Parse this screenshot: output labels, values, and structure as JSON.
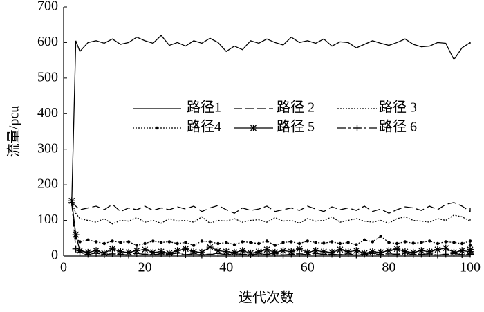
{
  "chart_data": {
    "type": "line",
    "xlabel": "迭代次数",
    "ylabel": "流量/pcu",
    "x": [
      2,
      3,
      4,
      6,
      8,
      10,
      12,
      14,
      16,
      18,
      20,
      22,
      24,
      26,
      28,
      30,
      32,
      34,
      36,
      38,
      40,
      42,
      44,
      46,
      48,
      50,
      52,
      54,
      56,
      58,
      60,
      62,
      64,
      66,
      68,
      70,
      72,
      74,
      76,
      78,
      80,
      82,
      84,
      86,
      88,
      90,
      92,
      94,
      96,
      98,
      100,
      100
    ],
    "xlim": [
      0,
      100
    ],
    "xticks": [
      0,
      20,
      40,
      60,
      80,
      100
    ],
    "ylim": [
      0,
      700
    ],
    "yticks": [
      0,
      100,
      200,
      300,
      400,
      500,
      600,
      700
    ],
    "series": [
      {
        "name": "路径1",
        "color": "#000000",
        "line_style": "solid",
        "marker": "none",
        "values": [
          150,
          605,
          575,
          600,
          605,
          598,
          610,
          595,
          600,
          615,
          605,
          598,
          620,
          592,
          600,
          590,
          605,
          598,
          612,
          600,
          575,
          590,
          580,
          605,
          598,
          610,
          600,
          593,
          615,
          600,
          605,
          598,
          610,
          590,
          602,
          600,
          585,
          595,
          605,
          598,
          592,
          600,
          610,
          595,
          588,
          590,
          600,
          598,
          552,
          585,
          600,
          595
        ]
      },
      {
        "name": "路径 2",
        "color": "#000000",
        "line_style": "dashed",
        "marker": "none",
        "values": [
          150,
          140,
          130,
          135,
          140,
          130,
          145,
          125,
          135,
          130,
          140,
          128,
          135,
          130,
          138,
          132,
          140,
          125,
          135,
          142,
          130,
          120,
          135,
          128,
          132,
          140,
          125,
          130,
          135,
          128,
          140,
          132,
          125,
          138,
          130,
          135,
          128,
          140,
          125,
          132,
          120,
          130,
          138,
          135,
          128,
          140,
          130,
          145,
          150,
          140,
          125,
          135
        ]
      },
      {
        "name": "路径 3",
        "color": "#000000",
        "line_style": "dotted",
        "marker": "none",
        "values": [
          150,
          120,
          105,
          100,
          95,
          105,
          90,
          100,
          98,
          108,
          95,
          100,
          92,
          105,
          98,
          100,
          95,
          110,
          92,
          100,
          98,
          105,
          95,
          100,
          102,
          95,
          108,
          98,
          100,
          92,
          105,
          98,
          100,
          110,
          95,
          100,
          105,
          98,
          95,
          100,
          92,
          105,
          110,
          100,
          98,
          95,
          105,
          100,
          115,
          110,
          98,
          105
        ]
      },
      {
        "name": "路径4",
        "color": "#000000",
        "line_style": "dotted",
        "marker": "dot",
        "values": [
          150,
          50,
          40,
          45,
          40,
          35,
          42,
          38,
          40,
          30,
          35,
          42,
          38,
          40,
          35,
          38,
          30,
          42,
          40,
          35,
          38,
          32,
          40,
          38,
          35,
          42,
          30,
          38,
          40,
          35,
          42,
          38,
          36,
          40,
          35,
          38,
          32,
          45,
          40,
          55,
          38,
          35,
          40,
          36,
          38,
          42,
          35,
          40,
          38,
          35,
          42,
          30
        ]
      },
      {
        "name": "路径 5",
        "color": "#000000",
        "line_style": "solid",
        "marker": "star",
        "values": [
          155,
          60,
          15,
          10,
          15,
          8,
          20,
          12,
          10,
          15,
          18,
          10,
          12,
          8,
          15,
          20,
          12,
          10,
          25,
          15,
          12,
          10,
          15,
          8,
          12,
          18,
          10,
          15,
          12,
          20,
          10,
          15,
          12,
          10,
          18,
          12,
          15,
          8,
          12,
          10,
          15,
          20,
          12,
          10,
          15,
          12,
          18,
          22,
          10,
          15,
          12,
          18
        ]
      },
      {
        "name": "路径 6",
        "color": "#000000",
        "line_style": "dashdot",
        "marker": "plus",
        "values": [
          150,
          20,
          10,
          5,
          8,
          4,
          6,
          5,
          3,
          7,
          5,
          4,
          6,
          5,
          8,
          4,
          6,
          3,
          5,
          7,
          4,
          6,
          5,
          4,
          6,
          5,
          8,
          3,
          5,
          6,
          4,
          7,
          5,
          5,
          4,
          6,
          3,
          5,
          7,
          4,
          6,
          5,
          8,
          4,
          5,
          6,
          3,
          5,
          7,
          4,
          5,
          6
        ]
      }
    ]
  }
}
